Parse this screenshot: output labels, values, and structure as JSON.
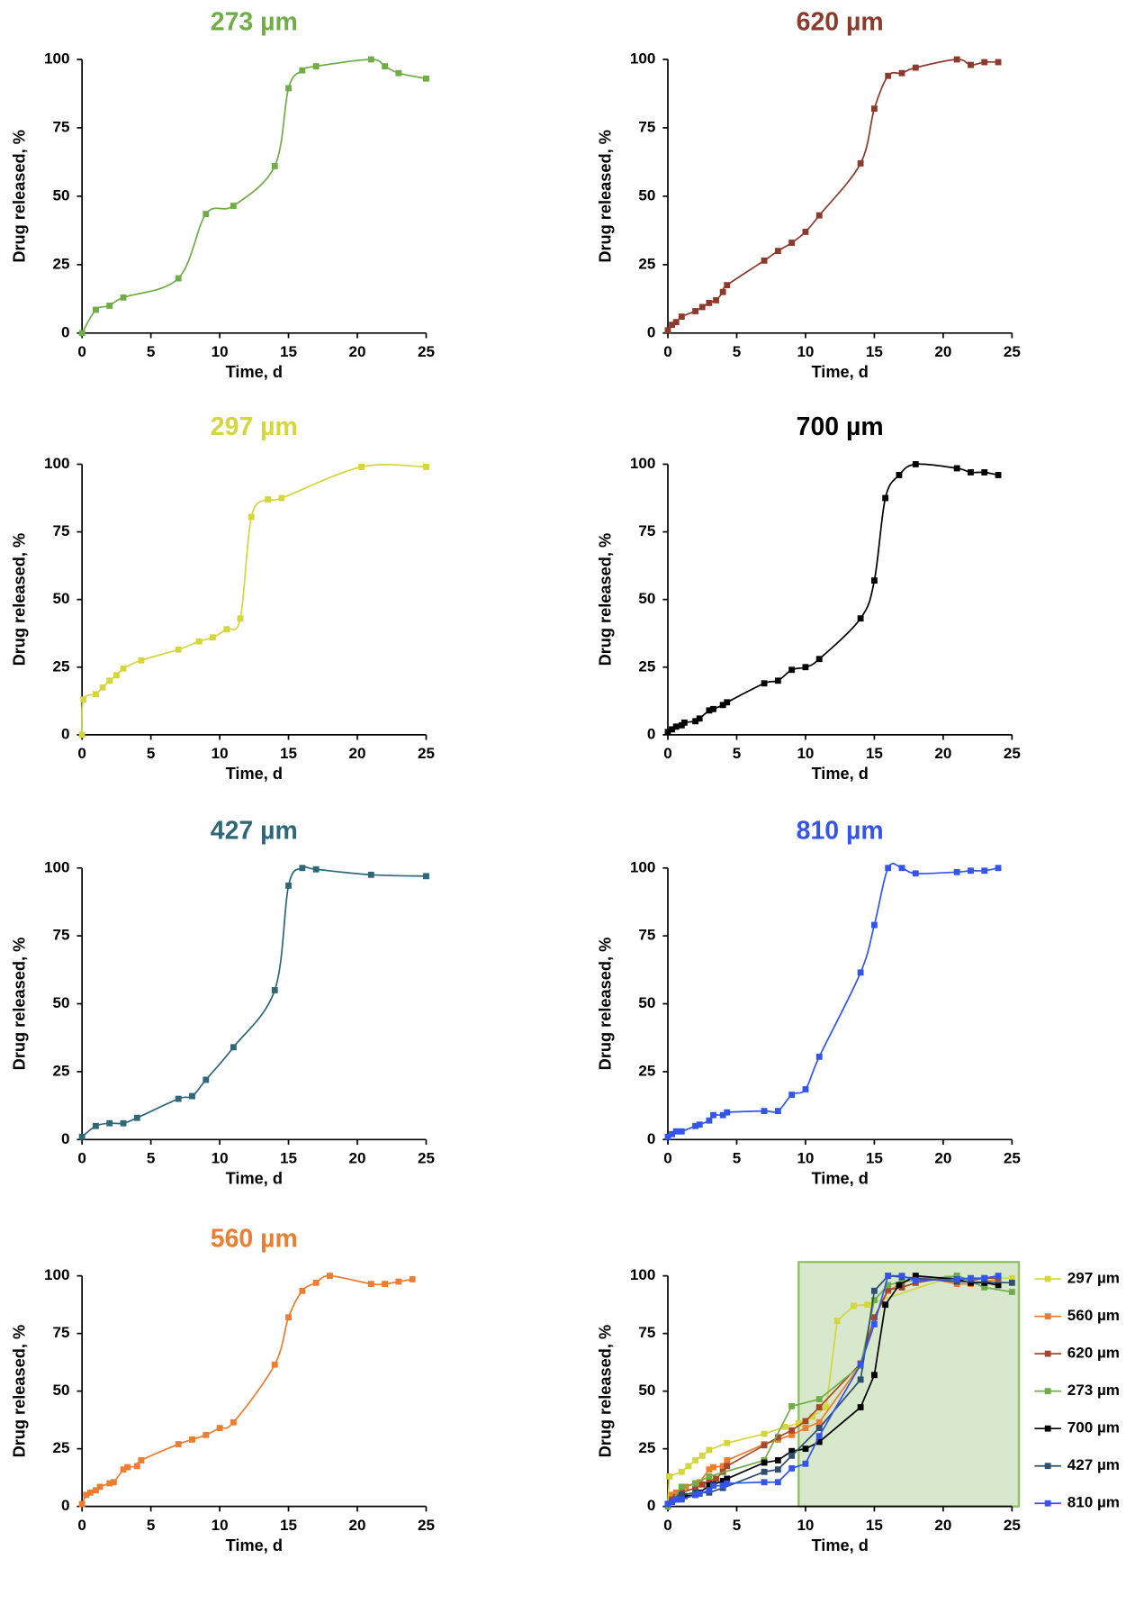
{
  "chart_data": [
    {
      "type": "line",
      "title": "273 µm",
      "color": "#70ad47",
      "smooth": true,
      "xlabel": "Time, d",
      "ylabel": "Drug released, %",
      "x": [
        0,
        1,
        2,
        3,
        7,
        9,
        11,
        14,
        15,
        16,
        17,
        21,
        22,
        23,
        25
      ],
      "values": [
        0,
        8.5,
        10,
        13,
        20,
        43.5,
        46.5,
        61,
        89.5,
        96,
        97.5,
        100,
        97.5,
        95,
        93
      ],
      "xlim": [
        0,
        25
      ],
      "ylim": [
        0,
        100
      ],
      "xticks": [
        0,
        5,
        10,
        15,
        20,
        25
      ],
      "yticks": [
        0,
        25,
        50,
        75,
        100
      ]
    },
    {
      "type": "line",
      "title": "620 µm",
      "color": "#8b3a2b",
      "smooth": true,
      "xlabel": "Time, d",
      "ylabel": "Drug released, %",
      "x": [
        0,
        0.3,
        0.6,
        1,
        2,
        2.5,
        3,
        3.5,
        4,
        4.3,
        7,
        8,
        9,
        10,
        11,
        14,
        15,
        16,
        17,
        18,
        21,
        22,
        23,
        24
      ],
      "values": [
        1,
        3,
        4,
        6,
        8,
        9.5,
        11,
        12,
        15,
        17.5,
        26.5,
        30,
        33,
        37,
        43,
        62,
        82,
        94,
        95,
        97,
        100,
        98,
        99,
        99
      ],
      "xlim": [
        0,
        25
      ],
      "ylim": [
        0,
        100
      ],
      "xticks": [
        0,
        5,
        10,
        15,
        20,
        25
      ],
      "yticks": [
        0,
        25,
        50,
        75,
        100
      ]
    },
    {
      "type": "line",
      "title": "297 µm",
      "color": "#d4d63c",
      "smooth": true,
      "xlabel": "Time, d",
      "ylabel": "Drug released, %",
      "x": [
        0,
        0.1,
        1,
        1.5,
        2,
        2.5,
        3,
        4.3,
        7,
        8.5,
        9.5,
        10.5,
        11.5,
        12.3,
        13.5,
        14.5,
        20.3,
        25
      ],
      "values": [
        0,
        13,
        15,
        17.5,
        20,
        22,
        24.5,
        27.5,
        31.5,
        34.5,
        36,
        39,
        43,
        80.5,
        87,
        87.5,
        99,
        99
      ],
      "xlim": [
        0,
        25
      ],
      "ylim": [
        0,
        100
      ],
      "xticks": [
        0,
        5,
        10,
        15,
        20,
        25
      ],
      "yticks": [
        0,
        25,
        50,
        75,
        100
      ]
    },
    {
      "type": "line",
      "title": "700 µm",
      "color": "#000000",
      "smooth": true,
      "xlabel": "Time, d",
      "ylabel": "Drug released, %",
      "x": [
        0,
        0.3,
        0.6,
        1,
        1.2,
        2,
        2.3,
        3,
        3.3,
        4,
        4.3,
        7,
        8,
        9,
        10,
        11,
        14,
        15,
        15.8,
        16.8,
        18,
        21,
        22,
        23,
        24
      ],
      "values": [
        1,
        2,
        3,
        3.5,
        4.5,
        5,
        6,
        9,
        9.5,
        11,
        12,
        19,
        20,
        24,
        25,
        28,
        43,
        57,
        87.5,
        96,
        100,
        98.5,
        97,
        97,
        96
      ],
      "xlim": [
        0,
        25
      ],
      "ylim": [
        0,
        100
      ],
      "xticks": [
        0,
        5,
        10,
        15,
        20,
        25
      ],
      "yticks": [
        0,
        25,
        50,
        75,
        100
      ]
    },
    {
      "type": "line",
      "title": "427 µm",
      "color": "#2e6878",
      "smooth": true,
      "xlabel": "Time, d",
      "ylabel": "Drug released, %",
      "x": [
        0,
        1,
        2,
        3,
        4,
        7,
        8,
        9,
        11,
        14,
        15,
        16,
        17,
        21,
        25
      ],
      "values": [
        1,
        5,
        6,
        6,
        8,
        15,
        16,
        22,
        34,
        55,
        93.5,
        100,
        99.5,
        97.5,
        97
      ],
      "xlim": [
        0,
        25
      ],
      "ylim": [
        0,
        100
      ],
      "xticks": [
        0,
        5,
        10,
        15,
        20,
        25
      ],
      "yticks": [
        0,
        25,
        50,
        75,
        100
      ]
    },
    {
      "type": "line",
      "title": "810 µm",
      "color": "#3355ee",
      "smooth": true,
      "xlabel": "Time, d",
      "ylabel": "Drug released, %",
      "x": [
        0,
        0.3,
        0.6,
        1,
        2,
        2.3,
        3,
        3.3,
        4,
        4.3,
        7,
        8,
        9,
        10,
        11,
        14,
        15,
        16,
        17,
        18,
        21,
        22,
        23,
        24
      ],
      "values": [
        1,
        2,
        3,
        3,
        5,
        5.5,
        7,
        9,
        9,
        10,
        10.5,
        10.5,
        16.5,
        18.5,
        30.5,
        61.5,
        79,
        100,
        100,
        98,
        98.5,
        99,
        99,
        100
      ],
      "xlim": [
        0,
        25
      ],
      "ylim": [
        0,
        100
      ],
      "xticks": [
        0,
        5,
        10,
        15,
        20,
        25
      ],
      "yticks": [
        0,
        25,
        50,
        75,
        100
      ]
    },
    {
      "type": "line",
      "title": "560 µm",
      "color": "#ed7d31",
      "smooth": true,
      "xlabel": "Time, d",
      "ylabel": "Drug released, %",
      "x": [
        0,
        0.3,
        0.6,
        1,
        1.3,
        2,
        2.3,
        3,
        3.3,
        4,
        4.3,
        7,
        8,
        9,
        10,
        11,
        14,
        15,
        16,
        17,
        18,
        21,
        22,
        23,
        24
      ],
      "values": [
        1,
        5,
        6,
        7,
        8.5,
        10,
        10.5,
        16,
        17,
        17.5,
        20,
        27,
        29,
        31,
        34,
        36.5,
        61.5,
        82,
        93.5,
        97,
        100,
        96.5,
        96.5,
        97.5,
        98.5
      ],
      "xlim": [
        0,
        25
      ],
      "ylim": [
        0,
        100
      ],
      "xticks": [
        0,
        5,
        10,
        15,
        20,
        25
      ],
      "yticks": [
        0,
        25,
        50,
        75,
        100
      ]
    },
    {
      "type": "line",
      "smooth": false,
      "xlabel": "Time, d",
      "ylabel": "Drug released, %",
      "shaded_region": {
        "xlim": [
          9.5,
          25.5
        ],
        "ylim": [
          0,
          106
        ],
        "color": "#d8e8cc",
        "border": "#8cc063"
      },
      "series": [
        {
          "name": "297 µm",
          "color": "#d4d63c",
          "x": [
            0,
            0.1,
            1,
            1.5,
            2,
            2.5,
            3,
            4.3,
            7,
            8.5,
            9.5,
            10.5,
            11.5,
            12.3,
            13.5,
            14.5,
            20.3,
            25
          ],
          "values": [
            0,
            13,
            15,
            17.5,
            20,
            22,
            24.5,
            27.5,
            31.5,
            34.5,
            36,
            39,
            43,
            80.5,
            87,
            87.5,
            99,
            99
          ]
        },
        {
          "name": "560 µm",
          "color": "#ed7d31",
          "x": [
            0,
            0.3,
            0.6,
            1,
            1.3,
            2,
            2.3,
            3,
            3.3,
            4,
            4.3,
            7,
            8,
            9,
            10,
            11,
            14,
            15,
            16,
            17,
            18,
            21,
            22,
            23,
            24
          ],
          "values": [
            1,
            5,
            6,
            7,
            8.5,
            10,
            10.5,
            16,
            17,
            17.5,
            20,
            27,
            29,
            31,
            34,
            36.5,
            61.5,
            82,
            93.5,
            97,
            100,
            96.5,
            96.5,
            97.5,
            98.5
          ]
        },
        {
          "name": "620 µm",
          "color": "#a5472a",
          "x": [
            0,
            0.3,
            0.6,
            1,
            2,
            2.5,
            3,
            3.5,
            4,
            4.3,
            7,
            8,
            9,
            10,
            11,
            14,
            15,
            16,
            17,
            18,
            21,
            22,
            23,
            24
          ],
          "values": [
            1,
            3,
            4,
            6,
            8,
            9.5,
            11,
            12,
            15,
            17.5,
            26.5,
            30,
            33,
            37,
            43,
            62,
            82,
            94,
            95,
            97,
            100,
            98,
            99,
            99
          ]
        },
        {
          "name": "273 µm",
          "color": "#70ad47",
          "x": [
            0,
            1,
            2,
            3,
            7,
            9,
            11,
            14,
            15,
            16,
            17,
            21,
            22,
            23,
            25
          ],
          "values": [
            0,
            8.5,
            10,
            13,
            20,
            43.5,
            46.5,
            61,
            89.5,
            96,
            97.5,
            100,
            97.5,
            95,
            93
          ]
        },
        {
          "name": "700 µm",
          "color": "#000000",
          "x": [
            0,
            0.3,
            0.6,
            1,
            1.2,
            2,
            2.3,
            3,
            3.3,
            4,
            4.3,
            7,
            8,
            9,
            10,
            11,
            14,
            15,
            15.8,
            16.8,
            18,
            21,
            22,
            23,
            24
          ],
          "values": [
            1,
            2,
            3,
            3.5,
            4.5,
            5,
            6,
            9,
            9.5,
            11,
            12,
            19,
            20,
            24,
            25,
            28,
            43,
            57,
            87.5,
            96,
            100,
            98.5,
            97,
            97,
            96
          ]
        },
        {
          "name": "427 µm",
          "color": "#2e4f6e",
          "x": [
            0,
            1,
            2,
            3,
            4,
            7,
            8,
            9,
            11,
            14,
            15,
            16,
            17,
            21,
            25
          ],
          "values": [
            1,
            5,
            6,
            6,
            8,
            15,
            16,
            22,
            34,
            55,
            93.5,
            100,
            99.5,
            97.5,
            97
          ]
        },
        {
          "name": "810 µm",
          "color": "#3355ee",
          "x": [
            0,
            0.3,
            0.6,
            1,
            2,
            2.3,
            3,
            3.3,
            4,
            4.3,
            7,
            8,
            9,
            10,
            11,
            14,
            15,
            16,
            17,
            18,
            21,
            22,
            23,
            24
          ],
          "values": [
            1,
            2,
            3,
            3,
            5,
            5.5,
            7,
            9,
            9,
            10,
            10.5,
            10.5,
            16.5,
            18.5,
            30.5,
            61.5,
            79,
            100,
            100,
            98,
            98.5,
            99,
            99,
            100
          ]
        }
      ],
      "legend": "right",
      "xlim": [
        0,
        25
      ],
      "ylim": [
        0,
        100
      ],
      "xticks": [
        0,
        5,
        10,
        15,
        20,
        25
      ],
      "yticks": [
        0,
        25,
        50,
        75,
        100
      ]
    }
  ]
}
